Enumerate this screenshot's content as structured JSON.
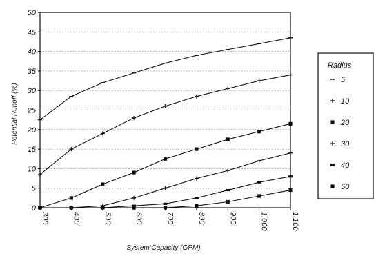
{
  "chart_data": {
    "type": "line",
    "title": "",
    "xlabel": "System Capacity (GPM)",
    "ylabel": "Potential Runoff (%)",
    "ylim": [
      0,
      50
    ],
    "yticks": [
      0,
      5,
      10,
      15,
      20,
      25,
      30,
      35,
      40,
      45,
      50
    ],
    "categories": [
      "300",
      "400",
      "500",
      "600",
      "700",
      "800",
      "900",
      "1,000",
      "1,100"
    ],
    "grid": true,
    "legend_title": "Radius",
    "legend_position": "right",
    "series": [
      {
        "name": "5",
        "values": [
          22.5,
          28.5,
          32,
          34.5,
          37,
          39,
          40.5,
          42,
          43.5
        ]
      },
      {
        "name": "10",
        "values": [
          8.5,
          15,
          19,
          23,
          26,
          28.5,
          30.5,
          32.5,
          34
        ]
      },
      {
        "name": "20",
        "values": [
          0,
          2.5,
          6,
          9,
          12.5,
          15,
          17.5,
          19.5,
          21.5
        ]
      },
      {
        "name": "30",
        "values": [
          0,
          0,
          0.5,
          2.5,
          5,
          7.5,
          9.5,
          12,
          14
        ]
      },
      {
        "name": "40",
        "values": [
          0,
          0,
          0,
          0.5,
          1,
          2.5,
          4.5,
          6.5,
          8
        ]
      },
      {
        "name": "50",
        "values": [
          0,
          0,
          0,
          0,
          0,
          0.5,
          1.5,
          3,
          4.5
        ]
      }
    ]
  }
}
